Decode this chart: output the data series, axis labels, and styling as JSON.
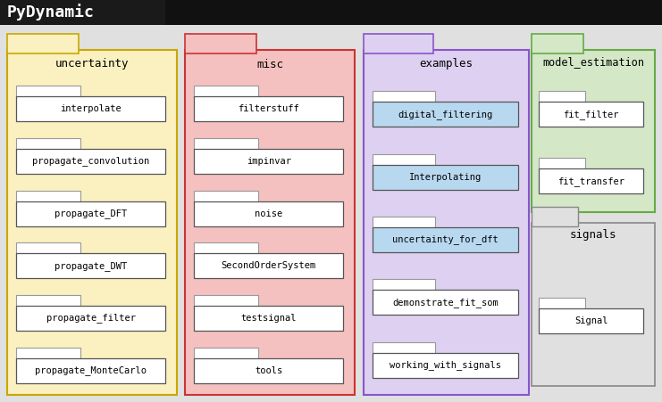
{
  "title": "PyDynamic",
  "title_bg": "#1a1a1a",
  "title_bg2": "#111111",
  "title_fg": "white",
  "bg_color": "#e0e0e0",
  "fig_w": 7.41,
  "fig_h": 4.51,
  "dpi": 100,
  "modules": [
    {
      "name": "uncertainty",
      "bg": "#faf0c0",
      "border": "#c8a800",
      "items": [
        "interpolate",
        "propagate_convolution",
        "propagate_DFT",
        "propagate_DWT",
        "propagate_filter",
        "propagate_MonteCarlo"
      ],
      "item_bg": [
        "white",
        "white",
        "white",
        "white",
        "white",
        "white"
      ]
    },
    {
      "name": "misc",
      "bg": "#f5c0c0",
      "border": "#cc3333",
      "items": [
        "filterstuff",
        "impinvar",
        "noise",
        "SecondOrderSystem",
        "testsignal",
        "tools"
      ],
      "item_bg": [
        "white",
        "white",
        "white",
        "white",
        "white",
        "white"
      ]
    },
    {
      "name": "examples",
      "bg": "#ddd0f0",
      "border": "#8855cc",
      "items": [
        "digital_filtering",
        "Interpolating",
        "uncertainty_for_dft",
        "demonstrate_fit_som",
        "working_with_signals"
      ],
      "item_bg": [
        "#b8d8f0",
        "#b8d8f0",
        "#b8d8f0",
        "white",
        "white"
      ]
    },
    {
      "name": "model_estimation",
      "bg": "#d4e8c8",
      "border": "#66aa44",
      "items": [
        "fit_filter",
        "fit_transfer"
      ],
      "item_bg": [
        "white",
        "white"
      ]
    }
  ],
  "signals_name": "signals",
  "signals_items": [
    "Signal"
  ],
  "signals_item_bg": [
    "white"
  ]
}
